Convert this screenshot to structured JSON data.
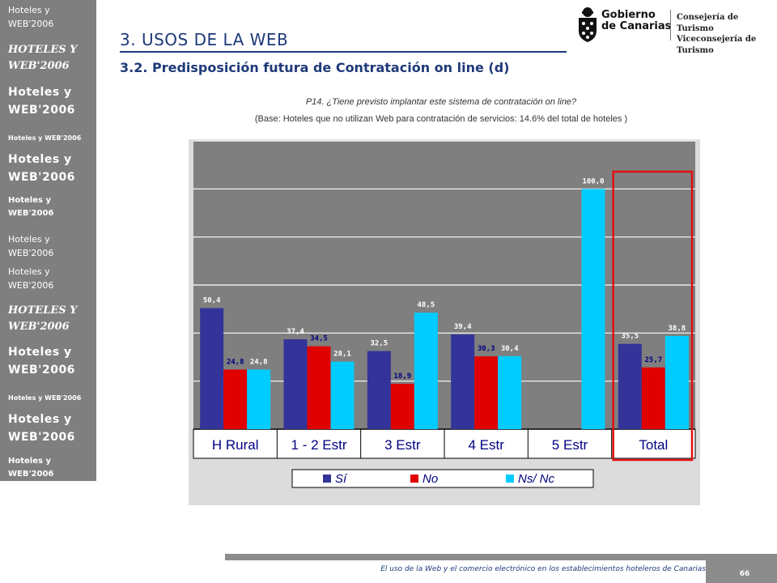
{
  "sidebar": {
    "items": [
      "Hoteles y\nWEB'2006",
      "Hoteles y\nWEB'2006",
      "Hoteles y\nWEB'2006",
      "Hoteles y WEB'2006",
      "Hoteles y\nWEB'2006",
      "Hoteles y\nWEB'2006",
      "Hoteles y\nWEB'2006",
      "Hoteles y\nWEB'2006",
      "Hoteles y\nWEB'2006",
      "Hoteles y\nWEB'2006",
      "Hoteles y WEB'2006",
      "Hoteles y\nWEB'2006",
      "Hoteles y\nWEB'2006"
    ]
  },
  "header": {
    "title": "3. USOS DE LA WEB",
    "subtitle": "3.2. Predisposición futura de Contratación on line (d)"
  },
  "logos": {
    "gobierno": "Gobierno\nde Canarias",
    "consejeria": "Consejería de Turismo\nViceconsejería de Turismo"
  },
  "question": "P14. ¿Tiene previsto implantar este sistema de contratación on line?",
  "base": "(Base: Hoteles que no utilizan Web para contratación de servicios: 14.6% del total de hoteles )",
  "chart_data": {
    "type": "bar",
    "categories": [
      "H Rural",
      "1 - 2 Estr",
      "3 Estr",
      "4 Estr",
      "5 Estr",
      "Total"
    ],
    "series": [
      {
        "name": "Sí",
        "values": [
          50.4,
          37.4,
          32.5,
          39.4,
          null,
          35.5
        ],
        "labels": [
          "50,4",
          "37,4",
          "32,5",
          "39,4",
          "",
          "35,5"
        ]
      },
      {
        "name": "No",
        "values": [
          24.8,
          34.5,
          18.9,
          30.3,
          null,
          25.7
        ],
        "labels": [
          "24,8",
          "34,5",
          "18,9",
          "30,3",
          "",
          "25,7"
        ]
      },
      {
        "name": "Ns/ Nc",
        "values": [
          24.8,
          28.1,
          48.5,
          30.4,
          100.0,
          38.8
        ],
        "labels": [
          "24,8",
          "28,1",
          "48,5",
          "30,4",
          "100,0",
          "38,8"
        ]
      }
    ],
    "ylim": [
      0,
      120
    ],
    "grid": true,
    "legend_position": "bottom",
    "highlight_category": "Total",
    "colors": {
      "series": [
        "#333399",
        "#e00000",
        "#00ccff"
      ],
      "label_text": [
        "#ffffff",
        "#000080",
        "#ffffff"
      ],
      "plot_background": "#7f7f7f",
      "panel_background": "#dcdcdc",
      "gridline": "#ffffff",
      "category_text": "#000080",
      "highlight": "#e01010"
    }
  },
  "footer": {
    "text": "El uso de la Web y el comercio electrónico en los establecimientos hoteleros de Canarias",
    "page": "66"
  }
}
